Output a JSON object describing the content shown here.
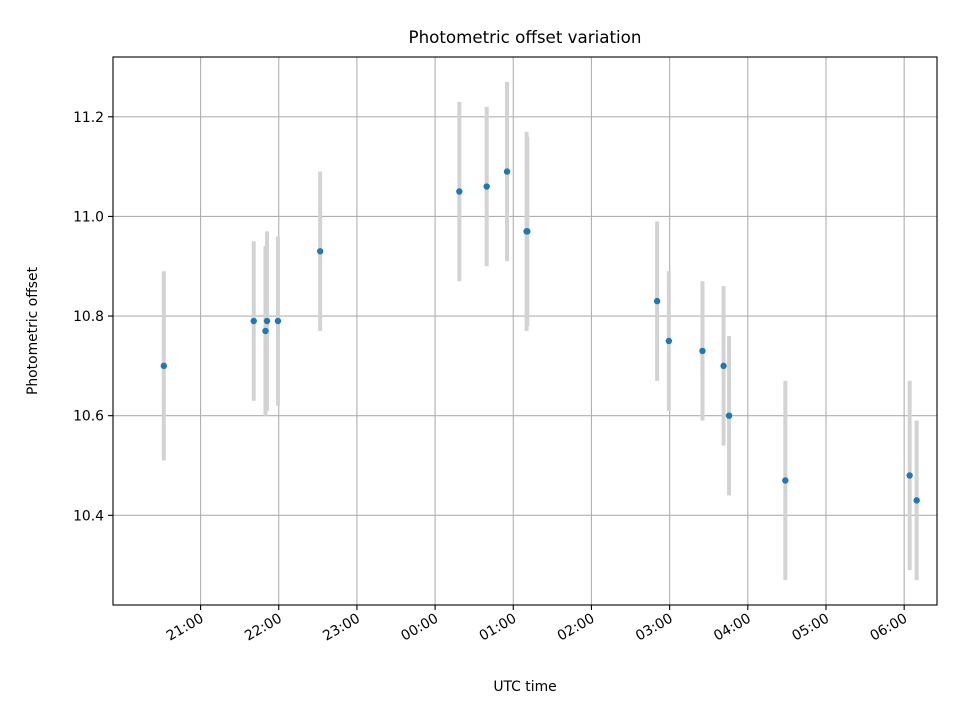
{
  "chart_data": {
    "type": "scatter",
    "title": "Photometric offset variation",
    "xlabel": "UTC time",
    "ylabel": "Photometric offset",
    "x_unit": "hours of UTC time, continuing past midnight (24.0 = 00:00)",
    "xlim": [
      19.88,
      30.42
    ],
    "ylim": [
      10.22,
      11.32
    ],
    "x_ticks": [
      {
        "value": 21,
        "label": "21:00"
      },
      {
        "value": 22,
        "label": "22:00"
      },
      {
        "value": 23,
        "label": "23:00"
      },
      {
        "value": 24,
        "label": "00:00"
      },
      {
        "value": 25,
        "label": "01:00"
      },
      {
        "value": 26,
        "label": "02:00"
      },
      {
        "value": 27,
        "label": "03:00"
      },
      {
        "value": 28,
        "label": "04:00"
      },
      {
        "value": 29,
        "label": "05:00"
      },
      {
        "value": 30,
        "label": "06:00"
      }
    ],
    "y_ticks": [
      {
        "value": 10.4,
        "label": "10.4"
      },
      {
        "value": 10.6,
        "label": "10.6"
      },
      {
        "value": 10.8,
        "label": "10.8"
      },
      {
        "value": 11.0,
        "label": "11.0"
      },
      {
        "value": 11.2,
        "label": "11.2"
      }
    ],
    "grid": true,
    "colors": {
      "marker": "#1f77b4",
      "errorbar": "#d3d3d3",
      "grid": "#b0b0b0"
    },
    "series": [
      {
        "points": [
          {
            "x": 20.53,
            "y": 10.7,
            "err": 0.19
          },
          {
            "x": 21.68,
            "y": 10.79,
            "err": 0.16
          },
          {
            "x": 21.83,
            "y": 10.77,
            "err": 0.17
          },
          {
            "x": 21.85,
            "y": 10.79,
            "err": 0.18
          },
          {
            "x": 21.99,
            "y": 10.79,
            "err": 0.17
          },
          {
            "x": 22.53,
            "y": 10.93,
            "err": 0.16
          },
          {
            "x": 24.31,
            "y": 11.05,
            "err": 0.18
          },
          {
            "x": 24.66,
            "y": 11.06,
            "err": 0.16
          },
          {
            "x": 24.92,
            "y": 11.09,
            "err": 0.18
          },
          {
            "x": 25.17,
            "y": 10.97,
            "err": 0.2
          },
          {
            "x": 25.18,
            "y": 10.97,
            "err": 0.19
          },
          {
            "x": 26.84,
            "y": 10.83,
            "err": 0.16
          },
          {
            "x": 26.99,
            "y": 10.75,
            "err": 0.14
          },
          {
            "x": 27.42,
            "y": 10.73,
            "err": 0.14
          },
          {
            "x": 27.69,
            "y": 10.7,
            "err": 0.16
          },
          {
            "x": 27.76,
            "y": 10.6,
            "err": 0.16
          },
          {
            "x": 28.48,
            "y": 10.47,
            "err": 0.2
          },
          {
            "x": 30.07,
            "y": 10.48,
            "err": 0.19
          },
          {
            "x": 30.16,
            "y": 10.43,
            "err": 0.16
          }
        ]
      }
    ]
  }
}
